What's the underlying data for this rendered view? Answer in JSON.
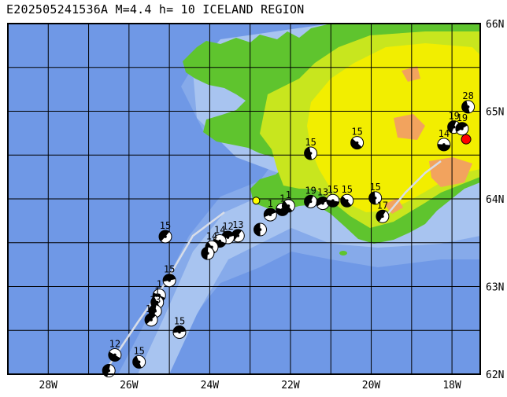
{
  "title": "E202505241536A M=4.4 h= 10 ICELAND REGION",
  "map": {
    "lon_range": [
      -29,
      -17.3
    ],
    "lat_range": [
      62,
      66
    ],
    "lon_ticks": [
      {
        "value": -28,
        "label": "28W"
      },
      {
        "value": -26,
        "label": "26W"
      },
      {
        "value": -24,
        "label": "24W"
      },
      {
        "value": -22,
        "label": "22W"
      },
      {
        "value": -20,
        "label": "20W"
      },
      {
        "value": -18,
        "label": "18W"
      }
    ],
    "lat_ticks": [
      {
        "value": 66,
        "label": "66N"
      },
      {
        "value": 65,
        "label": "65N"
      },
      {
        "value": 64,
        "label": "64N"
      },
      {
        "value": 63,
        "label": "63N"
      },
      {
        "value": 62,
        "label": "62N"
      }
    ],
    "colors": {
      "ocean_deep": "#6f98e6",
      "ocean_mid": "#86aaea",
      "ocean_shallow": "#a8c4f0",
      "land_low": "#5fc42e",
      "land_mid": "#c8e61e",
      "land_high": "#f2ee00",
      "land_peak": "#f2a35e",
      "grid": "#000000",
      "main_event": "#ff0000",
      "recent_event": "#ffff00"
    },
    "events": [
      {
        "lon": -17.65,
        "lat": 64.68,
        "depth": "",
        "main": true
      },
      {
        "lon": -22.85,
        "lat": 63.98,
        "depth": "",
        "recent": true
      },
      {
        "lon": -17.6,
        "lat": 65.05,
        "depth": "28"
      },
      {
        "lon": -17.95,
        "lat": 64.82,
        "depth": "19"
      },
      {
        "lon": -17.75,
        "lat": 64.8,
        "depth": "19"
      },
      {
        "lon": -18.2,
        "lat": 64.62,
        "depth": "14"
      },
      {
        "lon": -20.35,
        "lat": 64.64,
        "depth": "15"
      },
      {
        "lon": -21.5,
        "lat": 64.52,
        "depth": "15"
      },
      {
        "lon": -21.5,
        "lat": 63.97,
        "depth": "19"
      },
      {
        "lon": -21.2,
        "lat": 63.95,
        "depth": "13"
      },
      {
        "lon": -20.95,
        "lat": 63.98,
        "depth": "15"
      },
      {
        "lon": -20.6,
        "lat": 63.98,
        "depth": "15"
      },
      {
        "lon": -19.9,
        "lat": 64.01,
        "depth": "15"
      },
      {
        "lon": -19.72,
        "lat": 63.8,
        "depth": "17"
      },
      {
        "lon": -22.5,
        "lat": 63.82,
        "depth": "1"
      },
      {
        "lon": -22.2,
        "lat": 63.88,
        "depth": "1"
      },
      {
        "lon": -22.05,
        "lat": 63.92,
        "depth": "1"
      },
      {
        "lon": -22.75,
        "lat": 63.65,
        "depth": ""
      },
      {
        "lon": -23.3,
        "lat": 63.58,
        "depth": "13"
      },
      {
        "lon": -23.55,
        "lat": 63.56,
        "depth": "12"
      },
      {
        "lon": -23.75,
        "lat": 63.52,
        "depth": "14"
      },
      {
        "lon": -23.95,
        "lat": 63.45,
        "depth": "14"
      },
      {
        "lon": -24.05,
        "lat": 63.38,
        "depth": ""
      },
      {
        "lon": -25.1,
        "lat": 63.57,
        "depth": "15"
      },
      {
        "lon": -25.0,
        "lat": 63.07,
        "depth": "15"
      },
      {
        "lon": -25.25,
        "lat": 62.9,
        "depth": "1"
      },
      {
        "lon": -25.3,
        "lat": 62.82,
        "depth": "1"
      },
      {
        "lon": -25.35,
        "lat": 62.72,
        "depth": "13"
      },
      {
        "lon": -25.45,
        "lat": 62.62,
        "depth": "18"
      },
      {
        "lon": -24.75,
        "lat": 62.48,
        "depth": "15"
      },
      {
        "lon": -26.35,
        "lat": 62.22,
        "depth": "12"
      },
      {
        "lon": -25.75,
        "lat": 62.14,
        "depth": "15"
      },
      {
        "lon": -26.5,
        "lat": 62.04,
        "depth": ""
      }
    ]
  }
}
